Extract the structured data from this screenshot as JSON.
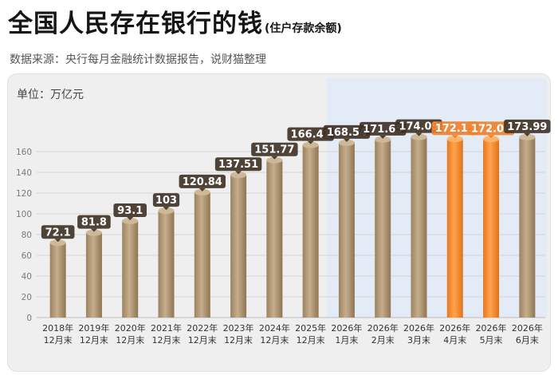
{
  "header": {
    "title": "全国人民存在银行的钱",
    "subtitle": "(住户存款余额)",
    "source": "数据来源：央行每月金融统计数据报告，说财猫整理",
    "unit": "单位：万亿元"
  },
  "colors": {
    "bar": "#b29876",
    "bar_highlight": "#f28a2e",
    "label_box": "#3d2f22",
    "label_box_highlight": "#ee7f2a",
    "highlight_band": "#e3ebf7",
    "grid": "#d6d6d6"
  },
  "chart_data": {
    "type": "bar",
    "categories": [
      [
        "2018年",
        "12月末"
      ],
      [
        "2019年",
        "12月末"
      ],
      [
        "2020年",
        "12月末"
      ],
      [
        "2021年",
        "12月末"
      ],
      [
        "2022年",
        "12月末"
      ],
      [
        "2023年",
        "12月末"
      ],
      [
        "2024年",
        "12月末"
      ],
      [
        "2025年",
        "12月末"
      ],
      [
        "2026年",
        "1月末"
      ],
      [
        "2026年",
        "2月末"
      ],
      [
        "2026年",
        "3月末"
      ],
      [
        "2026年",
        "4月末"
      ],
      [
        "2026年",
        "5月末"
      ],
      [
        "2026年",
        "6月末"
      ]
    ],
    "values": [
      72.1,
      81.8,
      93.1,
      103,
      120.84,
      137.51,
      151.77,
      166.41,
      168.54,
      171.65,
      174.09,
      172.15,
      172.04,
      173.99
    ],
    "value_labels": [
      "72.1",
      "81.8",
      "93.1",
      "103",
      "120.84",
      "137.51",
      "151.77",
      "166.41",
      "168.54",
      "171.65",
      "174.09",
      "172.15",
      "172.04",
      "173.99"
    ],
    "highlighted": [
      false,
      false,
      false,
      false,
      false,
      false,
      false,
      false,
      false,
      false,
      false,
      true,
      true,
      false
    ],
    "y_ticks": [
      0,
      20,
      40,
      60,
      80,
      100,
      120,
      140,
      160
    ],
    "y_tick_labels": [
      "0",
      "20",
      "40",
      "60",
      "80",
      "100",
      "120",
      "140",
      "160"
    ],
    "ylim": [
      0,
      185
    ],
    "grid": true,
    "highlight_band_range": [
      8,
      13
    ]
  }
}
